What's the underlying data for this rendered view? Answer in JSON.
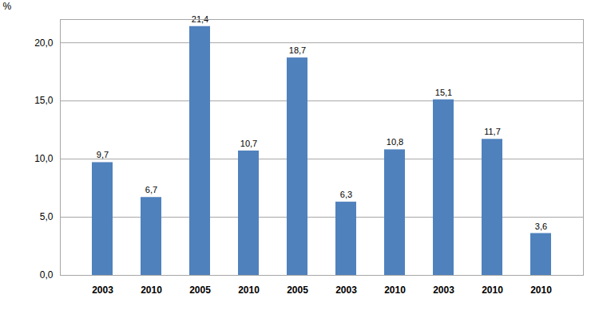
{
  "chart_data": {
    "type": "bar",
    "y_label": "%",
    "categories": [
      "2003",
      "2010",
      "2005",
      "2010",
      "2005",
      "2003",
      "2010",
      "2003",
      "2010",
      "2010"
    ],
    "values": [
      9.7,
      6.7,
      21.4,
      10.7,
      18.7,
      6.3,
      10.8,
      15.1,
      11.7,
      3.6
    ],
    "value_labels": [
      "9,7",
      "6,7",
      "21,4",
      "10,7",
      "18,7",
      "6,3",
      "10,8",
      "15,1",
      "11,7",
      "3,6"
    ],
    "data_labels": true,
    "color": "#4f81bd",
    "ylim": [
      0,
      22
    ],
    "yticks": [
      {
        "value": 0,
        "label": "0,0"
      },
      {
        "value": 5,
        "label": "5,0"
      },
      {
        "value": 10,
        "label": "10,0"
      },
      {
        "value": 15,
        "label": "15,0"
      },
      {
        "value": 20,
        "label": "20,0"
      }
    ],
    "grid": true
  }
}
